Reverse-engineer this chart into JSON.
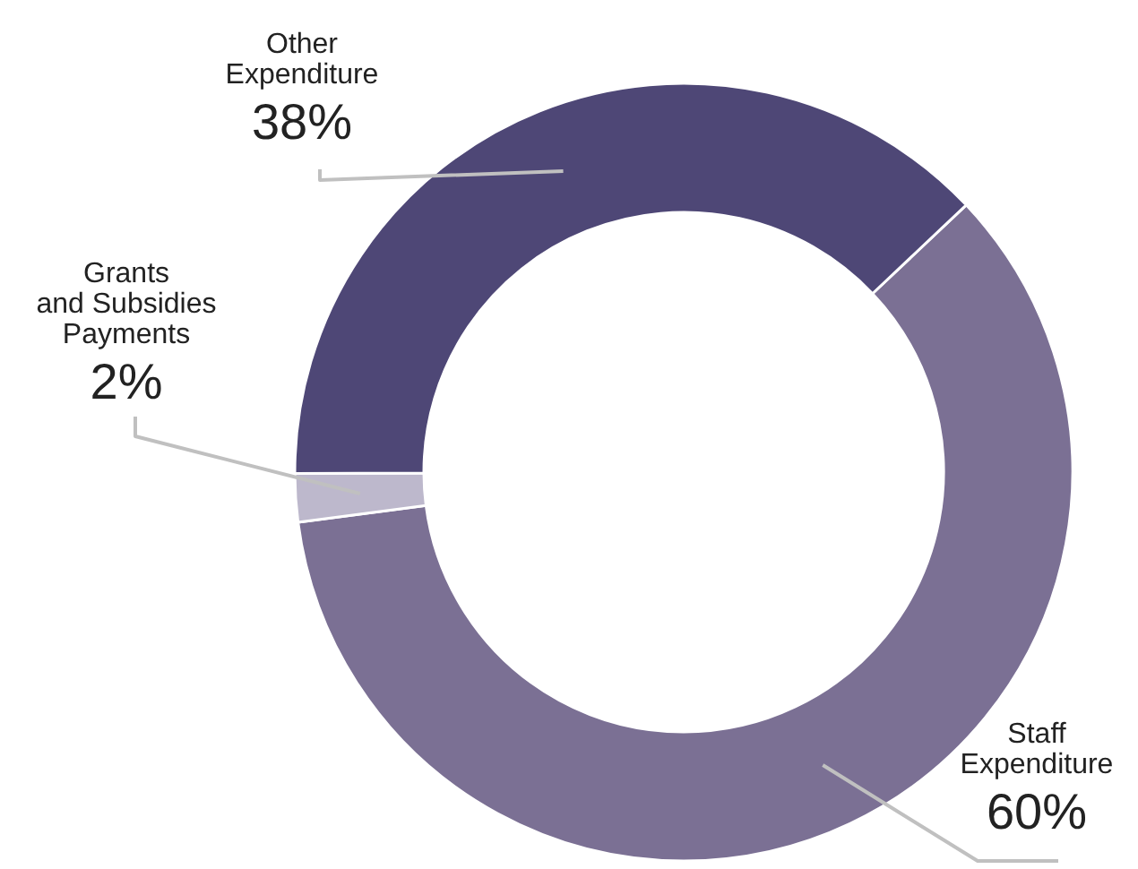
{
  "chart_data": {
    "type": "donut",
    "categories": [
      "Staff\nExpenditure",
      "Grants\nand Subsidies\nPayments",
      "Other\nExpenditure"
    ],
    "values": [
      60,
      2,
      38
    ],
    "value_labels": [
      "60%",
      "2%",
      "38%"
    ],
    "colors": [
      "#7b7094",
      "#bdb8cc",
      "#4e4776"
    ]
  }
}
